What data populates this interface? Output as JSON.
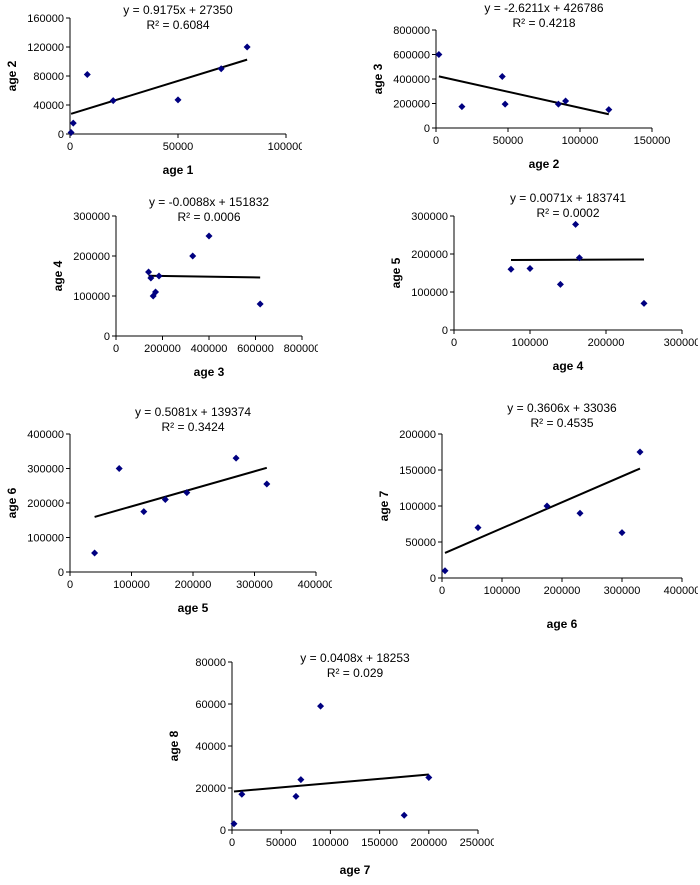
{
  "page": {
    "background": "#ffffff"
  },
  "colors": {
    "marker": "#000080",
    "trendline": "#000000",
    "axis": "#000000",
    "text": "#000000"
  },
  "chart_data": [
    {
      "type": "scatter",
      "title": "y = 0.9175x + 27350",
      "subtitle": "R² = 0.6084",
      "xlabel": "age 1",
      "ylabel": "age 2",
      "xlim": [
        0,
        100000
      ],
      "ylim": [
        0,
        160000
      ],
      "xticks": [
        0,
        50000,
        100000
      ],
      "yticks": [
        0,
        40000,
        80000,
        120000,
        160000
      ],
      "grid": false,
      "legend": false,
      "points": [
        [
          500,
          2000
        ],
        [
          1500,
          15000
        ],
        [
          8000,
          82000
        ],
        [
          20000,
          46000
        ],
        [
          50000,
          47000
        ],
        [
          70000,
          90000
        ],
        [
          82000,
          120000
        ]
      ],
      "trend": {
        "slope": 0.9175,
        "intercept": 27350
      }
    },
    {
      "type": "scatter",
      "title": "y = -2.6211x + 426786",
      "subtitle": "R² = 0.4218",
      "xlabel": "age 2",
      "ylabel": "age 3",
      "xlim": [
        0,
        150000
      ],
      "ylim": [
        0,
        800000
      ],
      "xticks": [
        0,
        50000,
        100000,
        150000
      ],
      "yticks": [
        0,
        200000,
        400000,
        600000,
        800000
      ],
      "grid": false,
      "legend": false,
      "points": [
        [
          2000,
          600000
        ],
        [
          18000,
          175000
        ],
        [
          46000,
          420000
        ],
        [
          48000,
          195000
        ],
        [
          85000,
          195000
        ],
        [
          90000,
          220000
        ],
        [
          120000,
          150000
        ]
      ],
      "trend": {
        "slope": -2.6211,
        "intercept": 426786
      }
    },
    {
      "type": "scatter",
      "title": "y = -0.0088x + 151832",
      "subtitle": "R² = 0.0006",
      "xlabel": "age 3",
      "ylabel": "age 4",
      "xlim": [
        0,
        800000
      ],
      "ylim": [
        0,
        300000
      ],
      "xticks": [
        0,
        200000,
        400000,
        600000,
        800000
      ],
      "yticks": [
        0,
        100000,
        200000,
        300000
      ],
      "grid": false,
      "legend": false,
      "points": [
        [
          140000,
          160000
        ],
        [
          150000,
          145000
        ],
        [
          160000,
          100000
        ],
        [
          170000,
          110000
        ],
        [
          185000,
          150000
        ],
        [
          330000,
          200000
        ],
        [
          400000,
          250000
        ],
        [
          620000,
          80000
        ]
      ],
      "trend": {
        "slope": -0.0088,
        "intercept": 151832
      }
    },
    {
      "type": "scatter",
      "title": "y = 0.0071x + 183741",
      "subtitle": "R² = 0.0002",
      "xlabel": "age 4",
      "ylabel": "age 5",
      "xlim": [
        0,
        300000
      ],
      "ylim": [
        0,
        300000
      ],
      "xticks": [
        0,
        100000,
        200000,
        300000
      ],
      "yticks": [
        0,
        100000,
        200000,
        300000
      ],
      "grid": false,
      "legend": false,
      "points": [
        [
          75000,
          160000
        ],
        [
          100000,
          162000
        ],
        [
          140000,
          120000
        ],
        [
          160000,
          278000
        ],
        [
          165000,
          190000
        ],
        [
          250000,
          70000
        ]
      ],
      "trend": {
        "slope": 0.0071,
        "intercept": 183741
      }
    },
    {
      "type": "scatter",
      "title": "y = 0.5081x + 139374",
      "subtitle": "R² = 0.3424",
      "xlabel": "age 5",
      "ylabel": "age 6",
      "xlim": [
        0,
        400000
      ],
      "ylim": [
        0,
        400000
      ],
      "xticks": [
        0,
        100000,
        200000,
        300000,
        400000
      ],
      "yticks": [
        0,
        100000,
        200000,
        300000,
        400000
      ],
      "grid": false,
      "legend": false,
      "points": [
        [
          40000,
          55000
        ],
        [
          80000,
          300000
        ],
        [
          120000,
          175000
        ],
        [
          155000,
          210000
        ],
        [
          190000,
          230000
        ],
        [
          270000,
          330000
        ],
        [
          320000,
          255000
        ]
      ],
      "trend": {
        "slope": 0.5081,
        "intercept": 139374
      }
    },
    {
      "type": "scatter",
      "title": "y = 0.3606x + 33036",
      "subtitle": "R² = 0.4535",
      "xlabel": "age 6",
      "ylabel": "age 7",
      "xlim": [
        0,
        400000
      ],
      "ylim": [
        0,
        200000
      ],
      "xticks": [
        0,
        100000,
        200000,
        300000,
        400000
      ],
      "yticks": [
        0,
        50000,
        100000,
        150000,
        200000
      ],
      "grid": false,
      "legend": false,
      "points": [
        [
          5000,
          10000
        ],
        [
          60000,
          70000
        ],
        [
          175000,
          100000
        ],
        [
          230000,
          90000
        ],
        [
          300000,
          63000
        ],
        [
          330000,
          175000
        ]
      ],
      "trend": {
        "slope": 0.3606,
        "intercept": 33036
      }
    },
    {
      "type": "scatter",
      "title": "y = 0.0408x + 18253",
      "subtitle": "R² = 0.029",
      "xlabel": "age 7",
      "ylabel": "age 8",
      "xlim": [
        0,
        250000
      ],
      "ylim": [
        0,
        80000
      ],
      "xticks": [
        0,
        50000,
        100000,
        150000,
        200000,
        250000
      ],
      "yticks": [
        0,
        20000,
        40000,
        60000,
        80000
      ],
      "grid": false,
      "legend": false,
      "points": [
        [
          2000,
          3000
        ],
        [
          10000,
          17000
        ],
        [
          65000,
          16000
        ],
        [
          70000,
          24000
        ],
        [
          90000,
          59000
        ],
        [
          175000,
          7000
        ],
        [
          200000,
          25000
        ]
      ],
      "trend": {
        "slope": 0.0408,
        "intercept": 18253
      }
    }
  ]
}
